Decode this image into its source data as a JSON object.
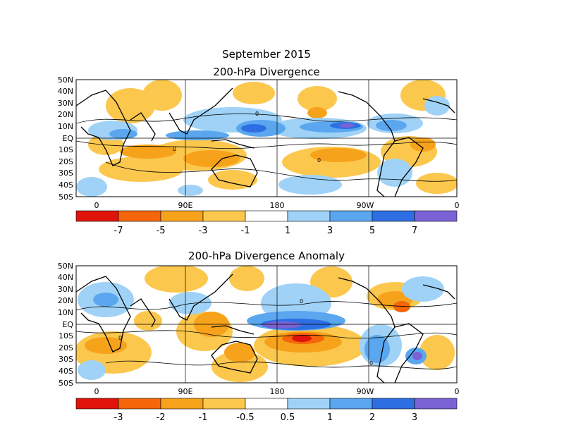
{
  "title": "September 2015",
  "panels": [
    {
      "subtitle": "200-hPa Divergence",
      "lat_labels": [
        "50N",
        "40N",
        "30N",
        "20N",
        "10N",
        "EQ",
        "10S",
        "20S",
        "30S",
        "40S",
        "50S"
      ],
      "lon_labels": [
        "0",
        "90E",
        "180",
        "90W",
        "0"
      ],
      "colorbar": {
        "colors": [
          "#e0140b",
          "#f5660a",
          "#f7a21b",
          "#fbc74d",
          "#ffffff",
          "#9fd2f6",
          "#5aa7ef",
          "#2d6fe2",
          "#7b62d4"
        ],
        "labels": [
          "-7",
          "-5",
          "-3",
          "-1",
          "1",
          "3",
          "5",
          "7"
        ]
      },
      "contour_label": "0"
    },
    {
      "subtitle": "200-hPa Divergence Anomaly",
      "lat_labels": [
        "50N",
        "40N",
        "30N",
        "20N",
        "10N",
        "EQ",
        "10S",
        "20S",
        "30S",
        "40S",
        "50S"
      ],
      "lon_labels": [
        "0",
        "90E",
        "180",
        "90W",
        "0"
      ],
      "colorbar": {
        "colors": [
          "#e0140b",
          "#f5660a",
          "#f7a21b",
          "#fbc74d",
          "#ffffff",
          "#9fd2f6",
          "#5aa7ef",
          "#2d6fe2",
          "#7b62d4"
        ],
        "labels": [
          "-3",
          "-2",
          "-1",
          "-0.5",
          "0.5",
          "1",
          "2",
          "3"
        ]
      },
      "contour_label": "0"
    }
  ]
}
